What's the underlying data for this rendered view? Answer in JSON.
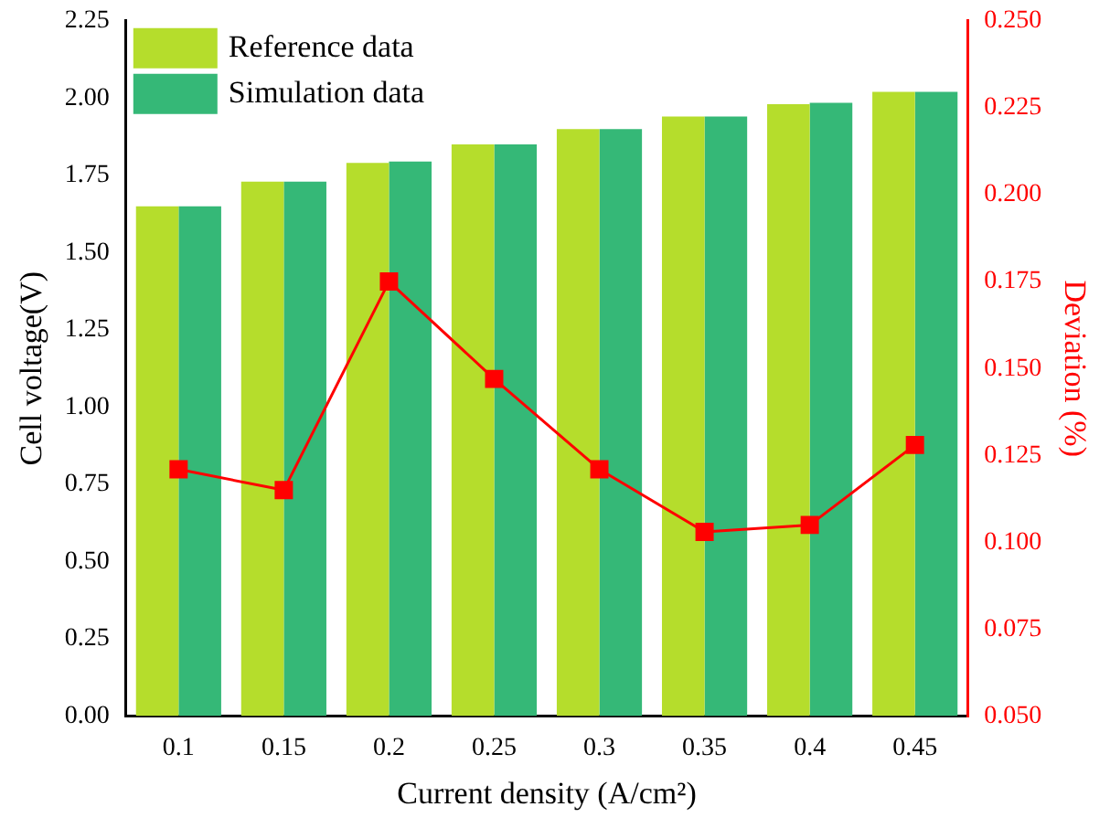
{
  "chart_data": {
    "type": "bar",
    "xlabel": "Current density (A/cm²)",
    "ylabel": "Cell voltage(V)",
    "y2label": "Deviation (%)",
    "categories": [
      "0.1",
      "0.15",
      "0.2",
      "0.25",
      "0.3",
      "0.35",
      "0.4",
      "0.45"
    ],
    "series": [
      {
        "name": "Reference data",
        "color": "#b5dd2c",
        "values": [
          1.65,
          1.73,
          1.79,
          1.85,
          1.9,
          1.94,
          1.98,
          2.02
        ]
      },
      {
        "name": "Simulation data",
        "color": "#35b877",
        "values": [
          1.65,
          1.73,
          1.795,
          1.85,
          1.9,
          1.94,
          1.985,
          2.02
        ]
      },
      {
        "type": "line",
        "axis": "y2",
        "color": "#ff0000",
        "marker": "square",
        "values": [
          0.121,
          0.115,
          0.175,
          0.147,
          0.121,
          0.103,
          0.105,
          0.128
        ]
      }
    ],
    "ylim": [
      0,
      2.25
    ],
    "yticks": [
      {
        "value": 0,
        "label": "0.00"
      },
      {
        "value": 0.25,
        "label": "0.25"
      },
      {
        "value": 0.5,
        "label": "0.50"
      },
      {
        "value": 0.75,
        "label": "0.75"
      },
      {
        "value": 1,
        "label": "1.00"
      },
      {
        "value": 1.25,
        "label": "1.25"
      },
      {
        "value": 1.5,
        "label": "1.50"
      },
      {
        "value": 1.75,
        "label": "1.75"
      },
      {
        "value": 2,
        "label": "2.00"
      },
      {
        "value": 2.25,
        "label": "2.25"
      }
    ],
    "y2lim": [
      0.05,
      0.25
    ],
    "y2ticks": [
      {
        "value": 0.05,
        "label": "0.050"
      },
      {
        "value": 0.075,
        "label": "0.075"
      },
      {
        "value": 0.1,
        "label": "0.100"
      },
      {
        "value": 0.125,
        "label": "0.125"
      },
      {
        "value": 0.15,
        "label": "0.150"
      },
      {
        "value": 0.175,
        "label": "0.175"
      },
      {
        "value": 0.2,
        "label": "0.200"
      },
      {
        "value": 0.225,
        "label": "0.225"
      },
      {
        "value": 0.25,
        "label": "0.250"
      }
    ],
    "grid": false,
    "legend": "top left"
  }
}
